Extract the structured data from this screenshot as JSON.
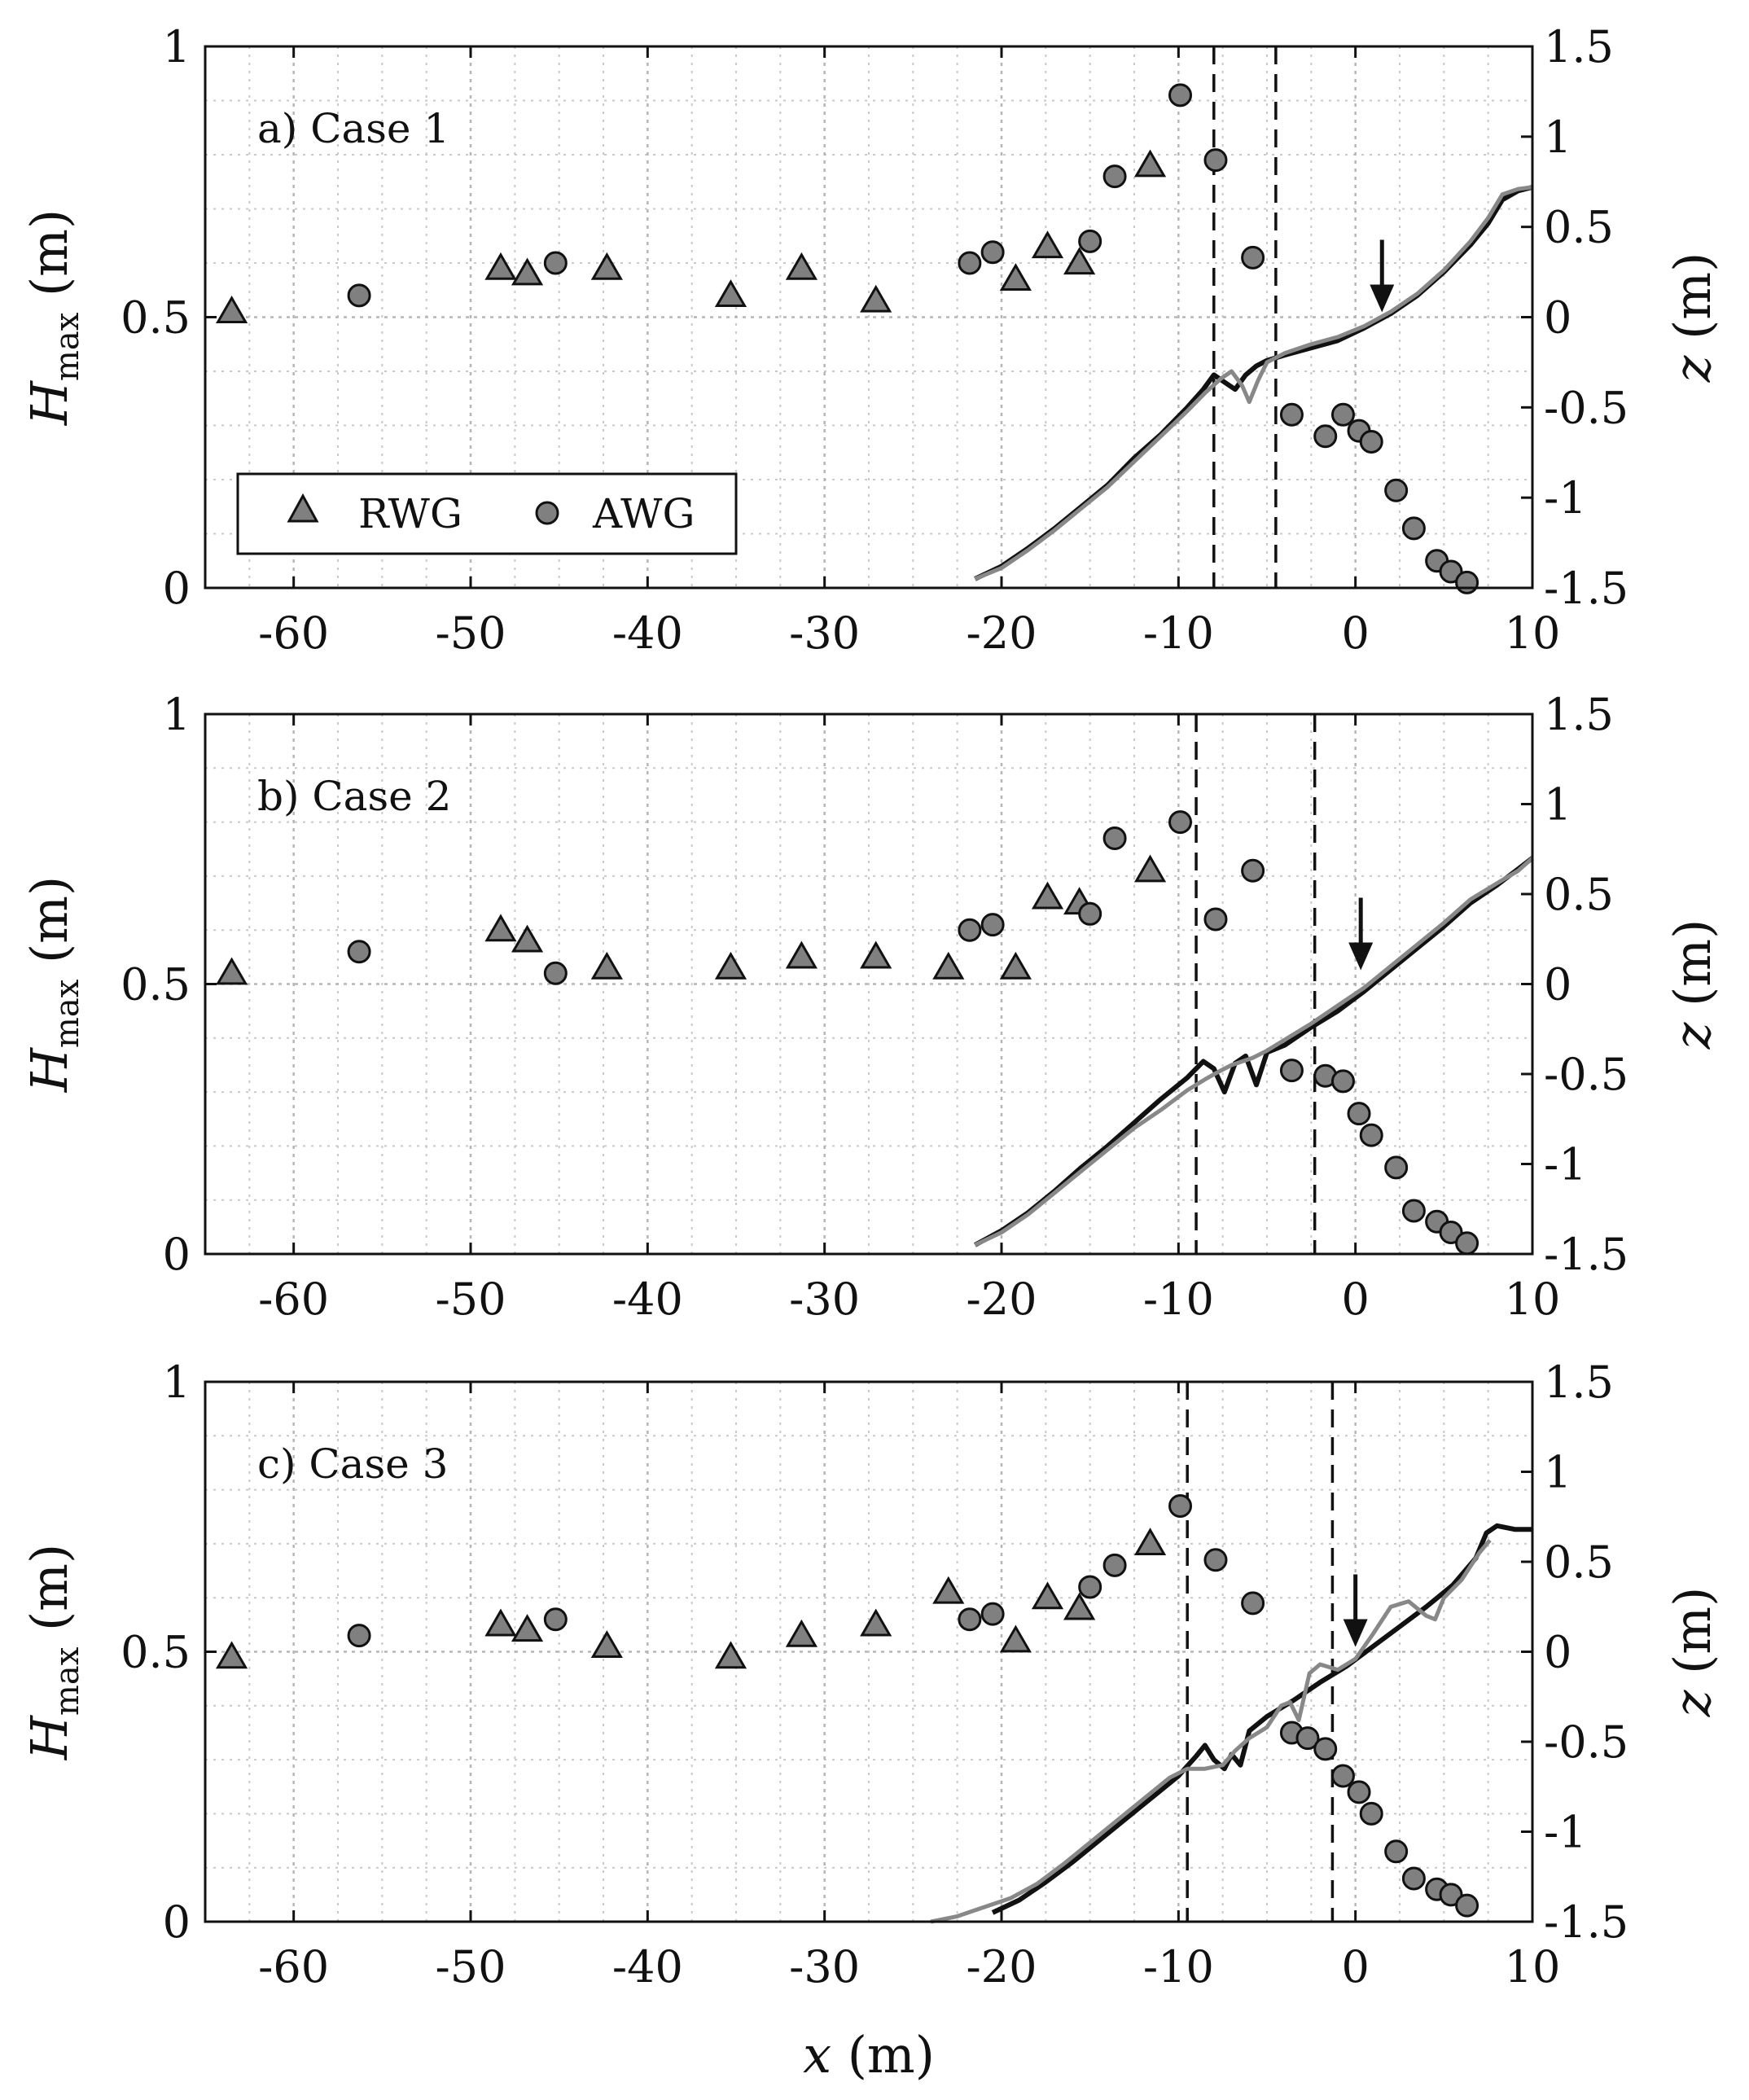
{
  "chart_data": [
    {
      "type": "scatter",
      "title": "a) Case 1",
      "xlabel": "x (m)",
      "ylabel_left": "H_max (m)",
      "ylabel_right": "z (m)",
      "xlim": [
        -65,
        10
      ],
      "ylim_left": [
        0,
        1
      ],
      "ylim_right": [
        -1.5,
        1.5
      ],
      "xticks": [
        "-60",
        "-50",
        "-40",
        "-30",
        "-20",
        "-10",
        "0",
        "10"
      ],
      "yticks_left": [
        "0",
        "0.5",
        "1"
      ],
      "yticks_right": [
        "-1.5",
        "-1",
        "-0.5",
        "0",
        "0.5",
        "1",
        "1.5"
      ],
      "legend": [
        "RWG",
        "AWG"
      ],
      "vlines": [
        -8,
        -4.5
      ],
      "arrow_x": 1.5,
      "arrow_z": 0.0,
      "series": [
        {
          "name": "RWG",
          "marker": "triangle",
          "x": [
            -63.5,
            -48.3,
            -46.8,
            -42.3,
            -35.3,
            -31.3,
            -27.1,
            -19.2,
            -17.4,
            -15.6,
            -11.6
          ],
          "y": [
            0.51,
            0.59,
            0.58,
            0.59,
            0.54,
            0.59,
            0.53,
            0.57,
            0.63,
            0.6,
            0.78
          ]
        },
        {
          "name": "AWG",
          "marker": "circle",
          "x": [
            -56.3,
            -45.2,
            -21.8,
            -20.5,
            -15.0,
            -13.6,
            -9.9,
            -7.9,
            -5.8,
            -3.6,
            -1.7,
            -0.7,
            0.2,
            0.9,
            2.3,
            3.3,
            4.6,
            5.4,
            6.3
          ],
          "y": [
            0.54,
            0.6,
            0.6,
            0.62,
            0.64,
            0.76,
            0.91,
            0.79,
            0.61,
            0.32,
            0.28,
            0.32,
            0.29,
            0.27,
            0.18,
            0.11,
            0.05,
            0.03,
            0.01
          ]
        },
        {
          "name": "profile-black",
          "type": "line",
          "x": [
            -21.5,
            -20,
            -18.5,
            -17,
            -15.5,
            -14,
            -12.5,
            -11,
            -9.5,
            -8.6,
            -8.0,
            -7.4,
            -6.8,
            -6.2,
            -5.6,
            -5.0,
            -4.0,
            -2.5,
            -1.0,
            0.5,
            2.0,
            3.5,
            5.0,
            6.5,
            7.5,
            8.3,
            9.2,
            10.0
          ],
          "y": [
            -1.45,
            -1.38,
            -1.28,
            -1.17,
            -1.05,
            -0.93,
            -0.78,
            -0.65,
            -0.5,
            -0.4,
            -0.32,
            -0.36,
            -0.4,
            -0.32,
            -0.27,
            -0.24,
            -0.21,
            -0.17,
            -0.13,
            -0.06,
            0.02,
            0.12,
            0.25,
            0.4,
            0.52,
            0.65,
            0.7,
            0.72
          ]
        },
        {
          "name": "profile-gray",
          "type": "line",
          "x": [
            -21.5,
            -20,
            -18.5,
            -17,
            -15.5,
            -14,
            -12.5,
            -11,
            -9.5,
            -8.5,
            -7.6,
            -7.0,
            -6.4,
            -6.0,
            -5.5,
            -5.0,
            -4.0,
            -2.5,
            -1.0,
            0.5,
            2.0,
            3.5,
            5.0,
            6.5,
            7.5,
            8.3,
            9.2,
            10.0
          ],
          "y": [
            -1.45,
            -1.39,
            -1.29,
            -1.18,
            -1.06,
            -0.94,
            -0.8,
            -0.66,
            -0.52,
            -0.42,
            -0.34,
            -0.3,
            -0.38,
            -0.47,
            -0.35,
            -0.25,
            -0.2,
            -0.15,
            -0.11,
            -0.05,
            0.03,
            0.13,
            0.26,
            0.42,
            0.55,
            0.68,
            0.71,
            0.72
          ]
        }
      ]
    },
    {
      "type": "scatter",
      "title": "b) Case 2",
      "xlabel": "x (m)",
      "ylabel_left": "H_max (m)",
      "ylabel_right": "z (m)",
      "xlim": [
        -65,
        10
      ],
      "ylim_left": [
        0,
        1
      ],
      "ylim_right": [
        -1.5,
        1.5
      ],
      "xticks": [
        "-60",
        "-50",
        "-40",
        "-30",
        "-20",
        "-10",
        "0",
        "10"
      ],
      "yticks_left": [
        "0",
        "0.5",
        "1"
      ],
      "yticks_right": [
        "-1.5",
        "-1",
        "-0.5",
        "0",
        "0.5",
        "1",
        "1.5"
      ],
      "vlines": [
        -9,
        -2.3
      ],
      "arrow_x": 0.3,
      "arrow_z": 0.05,
      "series": [
        {
          "name": "RWG",
          "marker": "triangle",
          "x": [
            -63.5,
            -48.3,
            -46.8,
            -42.3,
            -35.3,
            -31.3,
            -27.1,
            -23.0,
            -19.2,
            -17.4,
            -15.6,
            -11.6
          ],
          "y": [
            0.52,
            0.6,
            0.58,
            0.53,
            0.53,
            0.55,
            0.55,
            0.53,
            0.53,
            0.66,
            0.65,
            0.71
          ]
        },
        {
          "name": "AWG",
          "marker": "circle",
          "x": [
            -56.3,
            -45.2,
            -21.8,
            -20.5,
            -15.0,
            -13.6,
            -9.9,
            -7.9,
            -5.8,
            -3.6,
            -1.7,
            -0.7,
            0.2,
            0.9,
            2.3,
            3.3,
            4.6,
            5.4,
            6.3
          ],
          "y": [
            0.56,
            0.52,
            0.6,
            0.61,
            0.63,
            0.77,
            0.8,
            0.62,
            0.71,
            0.34,
            0.33,
            0.32,
            0.26,
            0.22,
            0.16,
            0.08,
            0.06,
            0.04,
            0.02
          ]
        },
        {
          "name": "profile-black",
          "type": "line",
          "x": [
            -21.5,
            -20,
            -18.5,
            -17,
            -15.5,
            -14,
            -12.5,
            -11,
            -9.5,
            -8.6,
            -8.0,
            -7.4,
            -6.8,
            -6.2,
            -5.6,
            -5.0,
            -4.0,
            -2.5,
            -1.0,
            0.5,
            2.0,
            3.5,
            5.0,
            6.5,
            8.0,
            9.2,
            10.0
          ],
          "y": [
            -1.45,
            -1.37,
            -1.27,
            -1.15,
            -1.02,
            -0.9,
            -0.77,
            -0.64,
            -0.52,
            -0.43,
            -0.47,
            -0.6,
            -0.44,
            -0.4,
            -0.56,
            -0.38,
            -0.34,
            -0.24,
            -0.15,
            -0.04,
            0.08,
            0.2,
            0.32,
            0.45,
            0.55,
            0.64,
            0.7
          ]
        },
        {
          "name": "profile-gray",
          "type": "line",
          "x": [
            -21.5,
            -20,
            -18.5,
            -17,
            -15.5,
            -14,
            -12.5,
            -11,
            -9.5,
            -8.5,
            -7.6,
            -7.0,
            -6.4,
            -5.8,
            -5.0,
            -4.0,
            -2.5,
            -1.0,
            0.5,
            2.0,
            3.5,
            5.0,
            6.5,
            8.0,
            9.2,
            10.0
          ],
          "y": [
            -1.45,
            -1.38,
            -1.28,
            -1.16,
            -1.04,
            -0.92,
            -0.8,
            -0.7,
            -0.59,
            -0.53,
            -0.48,
            -0.45,
            -0.43,
            -0.41,
            -0.37,
            -0.31,
            -0.22,
            -0.12,
            -0.02,
            0.1,
            0.22,
            0.34,
            0.47,
            0.56,
            0.63,
            0.7
          ]
        }
      ]
    },
    {
      "type": "scatter",
      "title": "c) Case 3",
      "xlabel": "x (m)",
      "ylabel_left": "H_max (m)",
      "ylabel_right": "z (m)",
      "xlim": [
        -65,
        10
      ],
      "ylim_left": [
        0,
        1
      ],
      "ylim_right": [
        -1.5,
        1.5
      ],
      "xticks": [
        "-60",
        "-50",
        "-40",
        "-30",
        "-20",
        "-10",
        "0",
        "10"
      ],
      "yticks_left": [
        "0",
        "0.5",
        "1"
      ],
      "yticks_right": [
        "-1.5",
        "-1",
        "-0.5",
        "0",
        "0.5",
        "1",
        "1.5"
      ],
      "vlines": [
        -9.5,
        -1.3
      ],
      "arrow_x": 0.0,
      "arrow_z": 0.0,
      "series": [
        {
          "name": "RWG",
          "marker": "triangle",
          "x": [
            -63.5,
            -48.3,
            -46.8,
            -42.3,
            -35.3,
            -31.3,
            -27.1,
            -23.0,
            -19.2,
            -17.4,
            -15.6,
            -11.6
          ],
          "y": [
            0.49,
            0.55,
            0.54,
            0.51,
            0.49,
            0.53,
            0.55,
            0.61,
            0.52,
            0.6,
            0.58,
            0.7
          ]
        },
        {
          "name": "AWG",
          "marker": "circle",
          "x": [
            -56.3,
            -45.2,
            -21.8,
            -20.5,
            -15.0,
            -13.6,
            -9.9,
            -7.9,
            -5.8,
            -3.6,
            -2.7,
            -1.7,
            -0.7,
            0.2,
            0.9,
            2.3,
            3.3,
            4.6,
            5.4,
            6.3
          ],
          "y": [
            0.53,
            0.56,
            0.56,
            0.57,
            0.62,
            0.66,
            0.77,
            0.67,
            0.59,
            0.35,
            0.34,
            0.32,
            0.27,
            0.24,
            0.2,
            0.13,
            0.08,
            0.06,
            0.05,
            0.03
          ]
        },
        {
          "name": "profile-black",
          "type": "line",
          "x": [
            -20.5,
            -19,
            -17.5,
            -16,
            -14.5,
            -13,
            -11.5,
            -10,
            -9.0,
            -8.5,
            -8.0,
            -7.4,
            -7.0,
            -6.5,
            -6.0,
            -5.0,
            -3.5,
            -2.0,
            -0.5,
            1.0,
            2.5,
            4.0,
            5.5,
            6.8,
            7.4,
            8.0,
            9.0,
            10.0
          ],
          "y": [
            -1.45,
            -1.38,
            -1.28,
            -1.17,
            -1.05,
            -0.93,
            -0.81,
            -0.69,
            -0.58,
            -0.52,
            -0.6,
            -0.65,
            -0.57,
            -0.63,
            -0.44,
            -0.36,
            -0.27,
            -0.17,
            -0.08,
            0.03,
            0.14,
            0.25,
            0.37,
            0.52,
            0.66,
            0.7,
            0.68,
            0.68
          ]
        },
        {
          "name": "profile-gray",
          "type": "line",
          "x": [
            -24.0,
            -22.5,
            -21,
            -19.5,
            -18,
            -16.5,
            -15,
            -13.5,
            -12,
            -10.5,
            -9.5,
            -8.5,
            -7.5,
            -6.8,
            -6.0,
            -5.0,
            -4.2,
            -3.7,
            -3.2,
            -2.6,
            -2.0,
            -1.0,
            0.0,
            1.0,
            2.0,
            3.0,
            4.0,
            4.5,
            5.0,
            6.0,
            7.0,
            7.6
          ],
          "y": [
            -1.5,
            -1.47,
            -1.42,
            -1.37,
            -1.29,
            -1.18,
            -1.06,
            -0.94,
            -0.82,
            -0.7,
            -0.65,
            -0.65,
            -0.63,
            -0.55,
            -0.48,
            -0.42,
            -0.3,
            -0.28,
            -0.38,
            -0.12,
            -0.07,
            -0.1,
            -0.04,
            0.1,
            0.25,
            0.28,
            0.2,
            0.18,
            0.3,
            0.4,
            0.55,
            0.62
          ]
        }
      ]
    }
  ]
}
